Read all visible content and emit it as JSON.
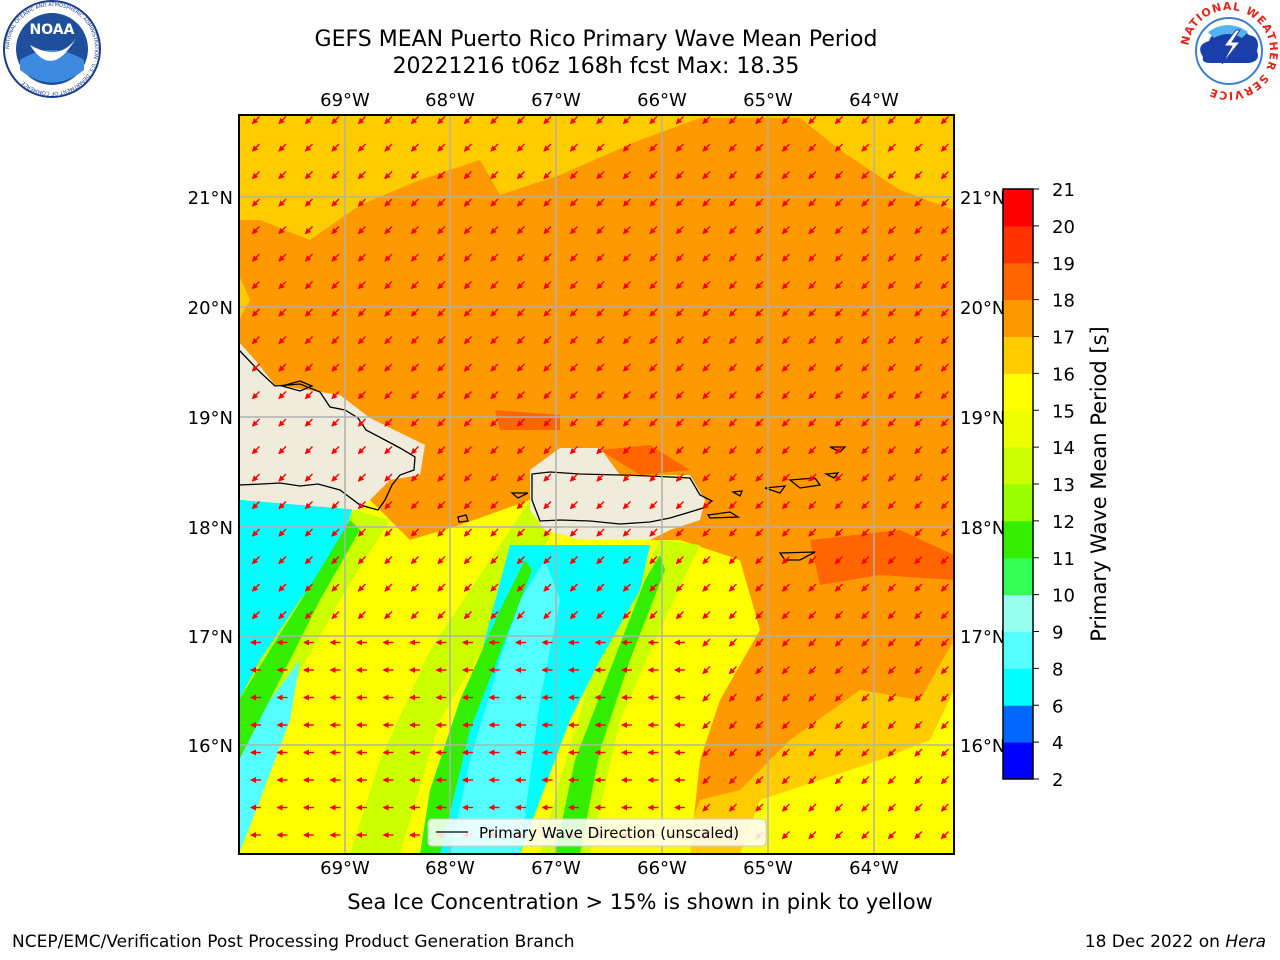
{
  "title": {
    "line1": "GEFS MEAN Puerto Rico Primary Wave Mean Period",
    "line2": "20221216 t06z 168h fcst   Max: 18.35"
  },
  "logos": {
    "left": "NOAA",
    "left_ring_text": "NATIONAL OCEANIC AND ATMOSPHERIC ADMINISTRATION · U.S. DEPARTMENT OF COMMERCE",
    "right_ring_text": "NATIONAL WEATHER SERVICE"
  },
  "map": {
    "lon_labels": [
      "69°W",
      "68°W",
      "67°W",
      "66°W",
      "65°W",
      "64°W"
    ],
    "lat_labels": [
      "21°N",
      "20°N",
      "19°N",
      "18°N",
      "17°N",
      "16°N"
    ],
    "legend_label": "Primary Wave Direction (unscaled)",
    "arrow_color": "#ff0000",
    "land_color": "#efecdc"
  },
  "colorbar": {
    "label": "Primary Wave Mean Period [s]",
    "ticks": [
      "2",
      "4",
      "6",
      "8",
      "9",
      "10",
      "11",
      "12",
      "13",
      "14",
      "15",
      "16",
      "17",
      "18",
      "19",
      "20",
      "21"
    ],
    "colors": [
      "#0000ff",
      "#0066ff",
      "#00ffff",
      "#55ffff",
      "#99ffee",
      "#33ff55",
      "#33ee00",
      "#99ff00",
      "#ccff00",
      "#eeff00",
      "#ffff00",
      "#ffcc00",
      "#ff9900",
      "#ff6600",
      "#ff3300",
      "#ff0000"
    ]
  },
  "subtitle": "Sea Ice Concentration > 15% is shown in pink to yellow",
  "footer": {
    "left": "NCEP/EMC/Verification Post Processing Product Generation Branch",
    "right_prefix": "18 Dec 2022 on ",
    "right_machine": "Hera"
  }
}
